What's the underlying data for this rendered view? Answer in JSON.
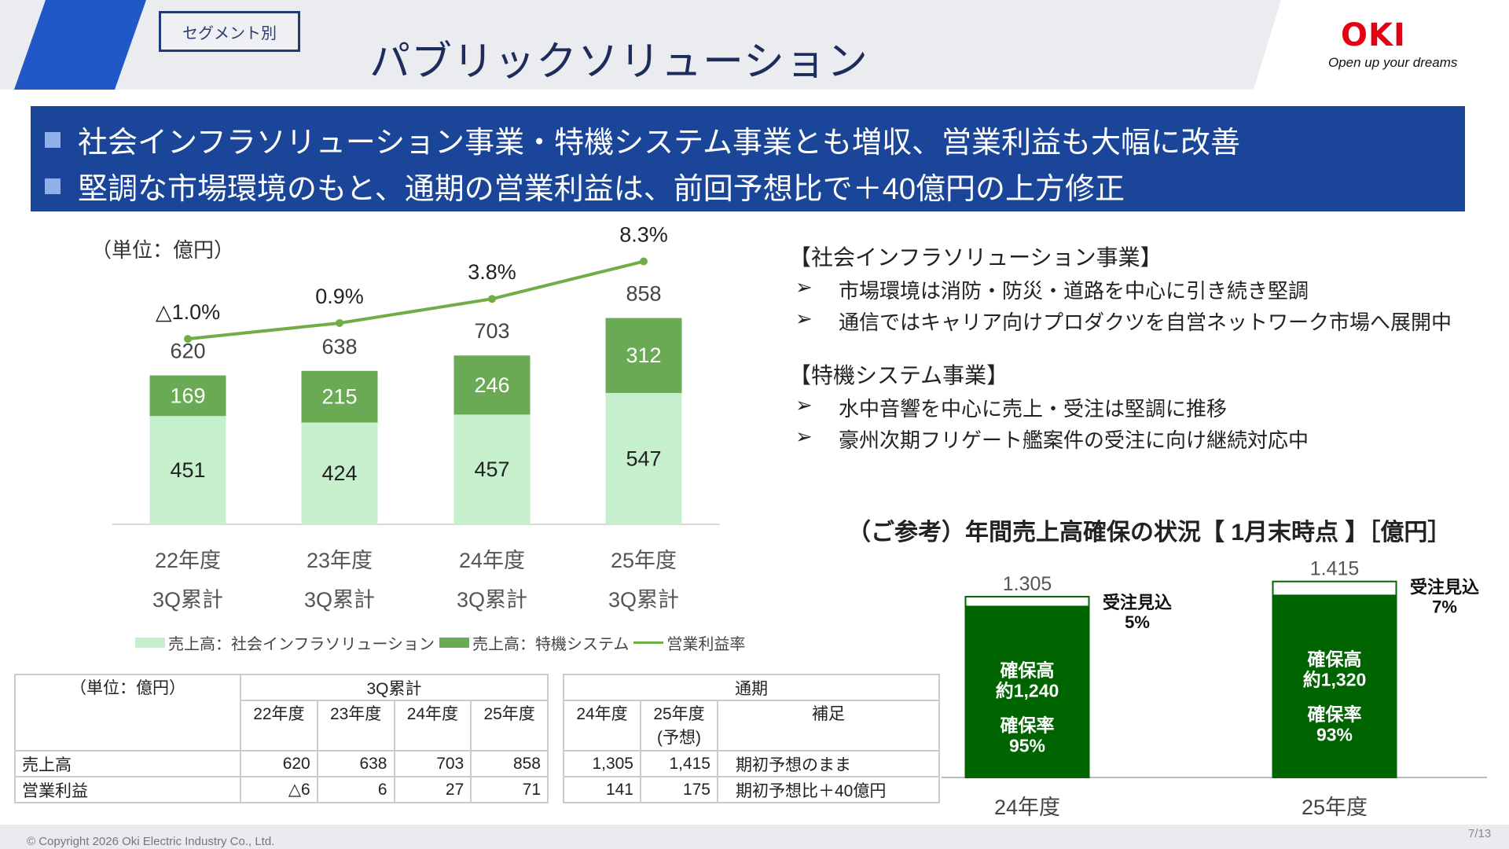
{
  "header": {
    "segment_label": "セグメント別",
    "title": "パブリックソリューション",
    "logo": "OKI",
    "tagline": "Open up your dreams"
  },
  "banner": {
    "lines": [
      "社会インフラソリューション事業・特機システム事業とも増収、営業利益も大幅に改善",
      "堅調な市場環境のもと、通期の営業利益は、前回予想比で＋40億円の上方修正"
    ]
  },
  "chart_data": [
    {
      "type": "bar",
      "unit": "（単位：億円）",
      "categories": [
        [
          "22年度",
          "3Q累計"
        ],
        [
          "23年度",
          "3Q累計"
        ],
        [
          "24年度",
          "3Q累計"
        ],
        [
          "25年度",
          "3Q累計"
        ]
      ],
      "series": [
        {
          "name": "売上高：社会インフラソリューション",
          "values": [
            451,
            424,
            457,
            547
          ],
          "color": "#c6efce"
        },
        {
          "name": "売上高：特機システム",
          "values": [
            169,
            215,
            246,
            312
          ],
          "color": "#6aaa55"
        },
        {
          "name": "営業利益率",
          "type": "line",
          "values": [
            -1.0,
            0.9,
            3.8,
            8.3
          ],
          "labels": [
            "△1.0%",
            "0.9%",
            "3.8%",
            "8.3%"
          ],
          "color": "#70ad47"
        }
      ],
      "totals": [
        620,
        638,
        703,
        858
      ],
      "legend": "bottom"
    },
    {
      "type": "bar",
      "title": "（ご参考）年間売上高確保の状況【 1月末時点 】［億円］",
      "categories": [
        "24年度",
        "25年度"
      ],
      "totals": [
        1305,
        1415
      ],
      "total_labels": [
        "1.305",
        "1.415"
      ],
      "secured": [
        1240,
        1320
      ],
      "secured_labels": [
        [
          "確保高",
          "約1,240",
          "確保率",
          "95%"
        ],
        [
          "確保高",
          "約1,320",
          "確保率",
          "93%"
        ]
      ],
      "pending_labels": [
        [
          "受注見込",
          "5%"
        ],
        [
          "受注見込",
          "7%"
        ]
      ],
      "color": "#006400"
    }
  ],
  "right": {
    "sections": [
      {
        "heading": "【社会インフラソリューション事業】",
        "bullets": [
          "市場環境は消防・防災・道路を中心に引き続き堅調",
          "通信ではキャリア向けプロダクツを自営ネットワーク市場へ展開中"
        ]
      },
      {
        "heading": "【特機システム事業】",
        "bullets": [
          "水中音響を中心に売上・受注は堅調に推移",
          "豪州次期フリゲート艦案件の受注に向け継続対応中"
        ]
      }
    ],
    "bullet_glyph": "➢"
  },
  "table1": {
    "unit": "（単位：億円）",
    "group": "3Q累計",
    "cols": [
      "22年度",
      "23年度",
      "24年度",
      "25年度"
    ],
    "rows": [
      {
        "label": "売上高",
        "values": [
          "620",
          "638",
          "703",
          "858"
        ]
      },
      {
        "label": "営業利益",
        "values": [
          "△6",
          "6",
          "27",
          "71"
        ]
      }
    ]
  },
  "table2": {
    "group": "通期",
    "cols": [
      "24年度",
      "25年度",
      "補足"
    ],
    "col2_sub": "(予想)",
    "rows": [
      {
        "values": [
          "1,305",
          "1,415",
          "期初予想のまま"
        ]
      },
      {
        "values": [
          "141",
          "175",
          "期初予想比＋40億円"
        ]
      }
    ]
  },
  "footer": {
    "copyright": "© Copyright 2026 Oki Electric Industry Co., Ltd.",
    "page": "7/13"
  }
}
